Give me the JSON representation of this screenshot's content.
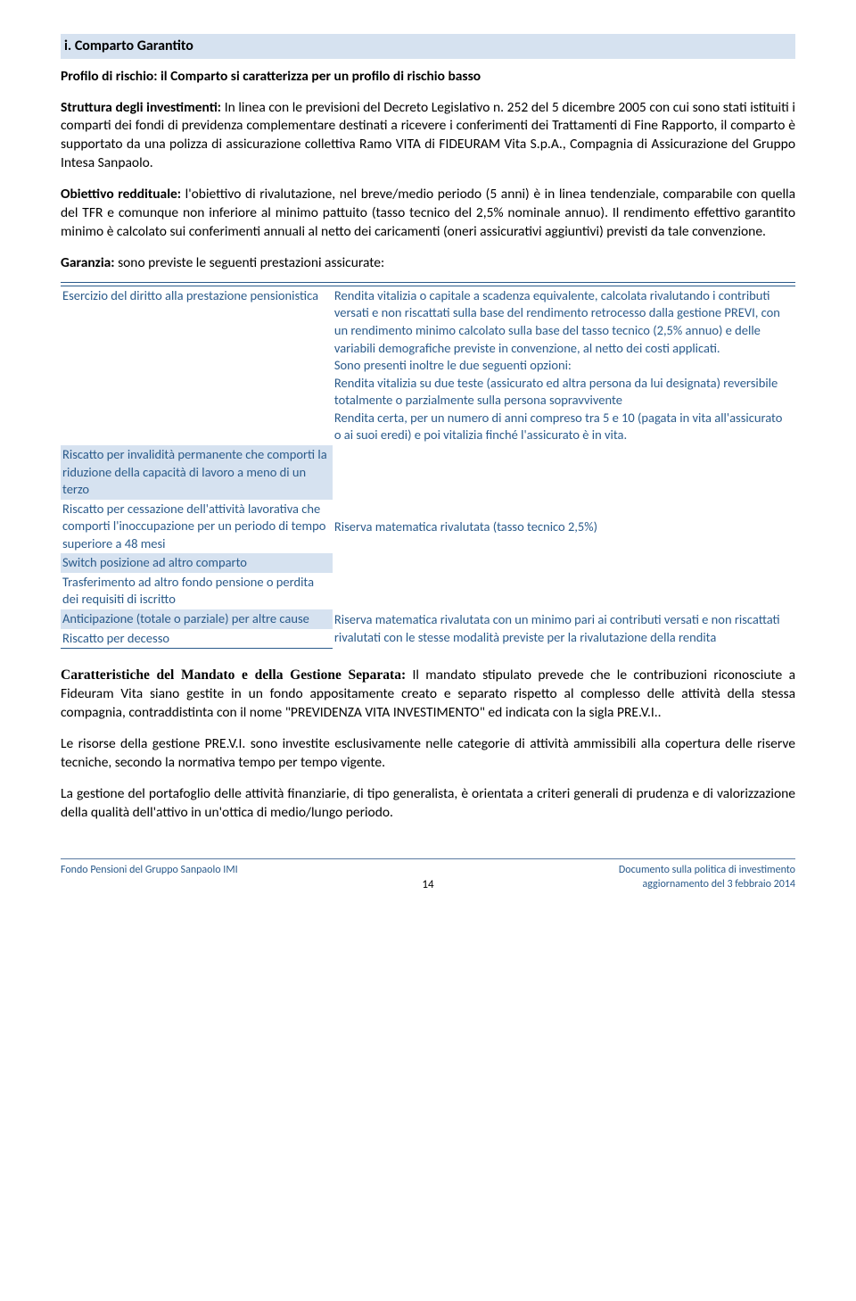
{
  "title_band": "i. Comparto Garantito",
  "subtitle": "Profilo di rischio: il Comparto si caratterizza per un profilo di rischio basso",
  "p1_label": "Struttura degli investimenti:",
  "p1_text": " In linea con le previsioni del Decreto Legislativo n. 252 del 5 dicembre 2005 con cui sono stati istituiti i comparti dei fondi di previdenza complementare destinati a ricevere i conferimenti dei Trattamenti di Fine Rapporto, il comparto è supportato da una polizza di assicurazione collettiva Ramo VITA di FIDEURAM Vita S.p.A., Compagnia di Assicurazione del Gruppo Intesa Sanpaolo.",
  "p2_label": "Obiettivo reddituale:",
  "p2_text": " l'obiettivo di rivalutazione, nel breve/medio periodo (5 anni) è in linea tendenziale, comparabile con quella del TFR e comunque non inferiore al minimo pattuito (tasso tecnico del 2,5% nominale annuo). Il rendimento effettivo garantito minimo è calcolato sui conferimenti annuali al netto dei caricamenti (oneri assicurativi aggiuntivi) previsti da tale convenzione.",
  "garanzia_label": "Garanzia:",
  "garanzia_text": " sono previste le seguenti prestazioni assicurate:",
  "row1_left": "Esercizio del diritto alla prestazione pensionistica",
  "row1_right": "Rendita vitalizia o capitale a scadenza equivalente, calcolata rivalutando i contributi versati e non riscattati sulla base del rendimento retrocesso dalla gestione PREVI, con un rendimento minimo calcolato sulla base del tasso tecnico (2,5% annuo) e delle variabili demografiche previste in convenzione, al netto dei costi applicati.\nSono presenti inoltre le due seguenti opzioni:\nRendita vitalizia su due teste (assicurato ed altra persona da lui designata) reversibile totalmente o parzialmente sulla persona sopravvivente\nRendita certa, per un numero di anni compreso tra 5 e 10 (pagata in vita all'assicurato o ai suoi eredi) e poi vitalizia finché l'assicurato è in vita.",
  "row2_left": "Riscatto per invalidità permanente che comporti la riduzione della capacità di lavoro a meno di un terzo",
  "row3_left": "Riscatto per cessazione dell'attività lavorativa che comporti l'inoccupazione per un periodo di tempo superiore a 48 mesi",
  "row3_right": "Riserva matematica rivalutata (tasso tecnico 2,5%)",
  "row4_left": "Switch posizione ad altro comparto",
  "row5_left": "Trasferimento ad altro fondo pensione o perdita dei requisiti di iscritto",
  "row6_left": "Anticipazione (totale o parziale) per altre cause",
  "row6_right": "Riserva matematica rivalutata con un minimo pari ai contributi versati e non riscattati rivalutati con le stesse modalità previste per la rivalutazione della rendita",
  "row7_left": "Riscatto per decesso",
  "p3_label": "Caratteristiche del Mandato e della Gestione Separata:",
  "p3_text": " Il mandato stipulato prevede che le contribuzioni riconosciute a Fideuram Vita siano gestite in un fondo appositamente creato e separato rispetto al complesso delle attività della stessa compagnia, contraddistinta con il nome \"PREVIDENZA VITA INVESTIMENTO\" ed indicata con la sigla PRE.V.I..",
  "p4": "Le risorse della gestione PRE.V.I. sono investite esclusivamente nelle categorie di attività ammissibili alla copertura delle riserve tecniche, secondo la normativa tempo per tempo vigente.",
  "p5": "La gestione del portafoglio delle attività finanziarie, di tipo generalista, è orientata a criteri generali di prudenza e di valorizzazione della qualità dell'attivo in un'ottica di medio/lungo periodo.",
  "footer_left": "Fondo Pensioni del  Gruppo Sanpaolo IMI",
  "footer_right1": "Documento sulla politica di investimento",
  "footer_right2": "aggiornamento del 3 febbraio 2014",
  "page_number": "14"
}
